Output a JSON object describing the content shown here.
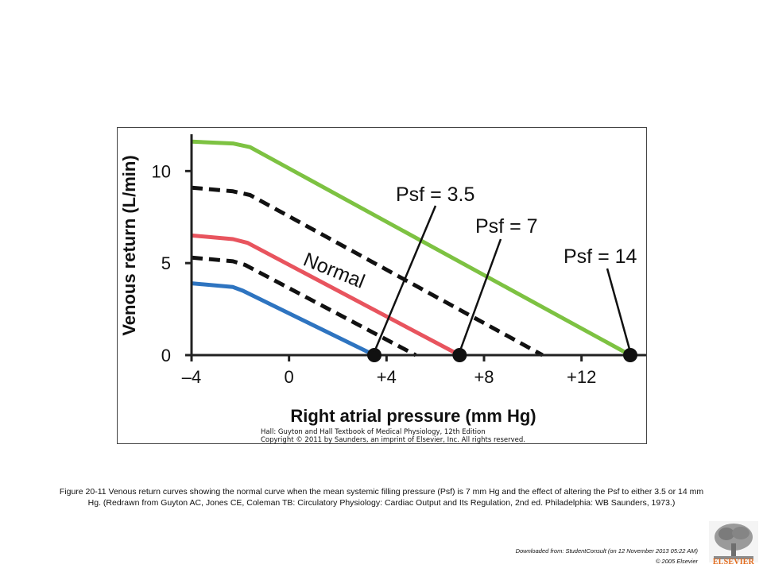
{
  "chart_data": {
    "type": "line",
    "xlabel": "Right atrial pressure (mm Hg)",
    "ylabel": "Venous return (L/min)",
    "xlim": [
      -4,
      14
    ],
    "ylim": [
      0,
      12
    ],
    "x_ticks": [
      -4,
      0,
      4,
      8,
      12
    ],
    "x_tick_labels": [
      "–4",
      "0",
      "+4",
      "+8",
      "+12"
    ],
    "y_ticks": [
      0,
      5,
      10
    ],
    "y_tick_labels": [
      "0",
      "5",
      "10"
    ],
    "grid": false,
    "series": [
      {
        "color": "#7dc242",
        "dash": false,
        "x": [
          -4,
          -2.3,
          -1.6,
          14
        ],
        "y": [
          11.6,
          11.5,
          11.3,
          0
        ]
      },
      {
        "color": "#111111",
        "dash": true,
        "x": [
          -4,
          -2.3,
          -1.6,
          10.4
        ],
        "y": [
          9.1,
          8.9,
          8.7,
          0
        ]
      },
      {
        "color": "#e8545e",
        "dash": false,
        "x": [
          -4,
          -2.3,
          -1.7,
          7
        ],
        "y": [
          6.5,
          6.3,
          6.1,
          0
        ]
      },
      {
        "color": "#111111",
        "dash": true,
        "x": [
          -4,
          -2.3,
          -1.8,
          5.2
        ],
        "y": [
          5.3,
          5.1,
          4.9,
          0
        ]
      },
      {
        "color": "#2e74c0",
        "dash": false,
        "x": [
          -4,
          -2.3,
          -1.9,
          3.5
        ],
        "y": [
          3.9,
          3.7,
          3.5,
          0
        ]
      }
    ],
    "points": [
      {
        "x": 3.5,
        "y": 0
      },
      {
        "x": 7,
        "y": 0
      },
      {
        "x": 14,
        "y": 0
      }
    ],
    "annotations": [
      {
        "text": "Psf = 3.5",
        "anchor_x": 3.5
      },
      {
        "text": "Psf = 7",
        "anchor_x": 7
      },
      {
        "text": "Psf = 14",
        "anchor_x": 14
      },
      {
        "text": "Normal"
      }
    ],
    "credit": [
      "Hall: Guyton and Hall Textbook of Medical Physiology, 12th Edition",
      "Copyright © 2011 by Saunders, an imprint of Elsevier, Inc. All rights reserved."
    ]
  },
  "caption": "Figure 20-11 Venous return curves showing the normal curve when the mean systemic filling pressure (Psf) is 7 mm Hg and the effect of altering the Psf to either 3.5 or 14 mm Hg. (Redrawn from Guyton AC, Jones CE, Coleman TB: Circulatory Physiology: Cardiac Output and Its Regulation, 2nd ed. Philadelphia: WB Saunders, 1973.)",
  "footer": {
    "download": "Downloaded from: StudentConsult (on 12 November 2013 05:22 AM)",
    "copyright": "© 2005 Elsevier",
    "logo_text": "ELSEVIER",
    "logo_color": "#e26a1b"
  }
}
